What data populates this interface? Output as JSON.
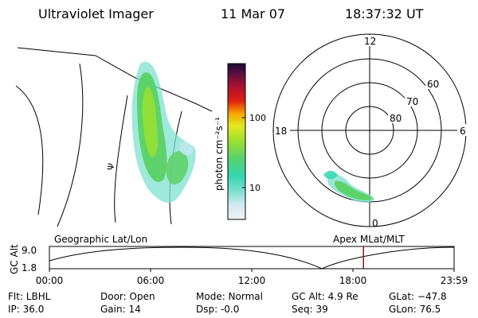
{
  "header": {
    "title": "Ultraviolet Imager",
    "date": "11 Mar 07",
    "time": "18:37:32 UT"
  },
  "colorbar": {
    "unit_label": "photon cm⁻²s⁻¹",
    "ticks": [
      "100",
      "10"
    ]
  },
  "polar": {
    "mlt_labels": [
      "12",
      "18",
      "6",
      "0"
    ],
    "lat_labels": [
      "60",
      "70",
      "80"
    ]
  },
  "left_map": {
    "marker": "Ψ"
  },
  "timeline": {
    "left_caption": "Geographic Lat/Lon",
    "right_caption": "Apex MLat/MLT",
    "y_axis_label": "GC Alt",
    "y_ticks": [
      "9.0",
      "1.8"
    ],
    "x_ticks": [
      "00:00",
      "06:00",
      "12:00",
      "18:00",
      "23:59"
    ],
    "current_time_hours": 18.625,
    "altitude_range_re": [
      1.8,
      9.0
    ]
  },
  "status": {
    "flt": "Flt: LBHL",
    "ip": "IP: 36.0",
    "door": "Door: Open",
    "gain": "Gain: 14",
    "mode": "Mode: Normal",
    "dsp": "Dsp:   -0.0",
    "gc_alt": "GC Alt: 4.9 Re",
    "seq": "Seq: 39",
    "glat": "GLat: −47.8",
    "glon": "GLon:  76.5"
  },
  "colors": {
    "timeline_marker": "#8b1a1a",
    "aurora_scale": [
      "#e8f1f8",
      "#7ee0d0",
      "#33d6b0",
      "#5ed26a",
      "#9ae030",
      "#e2e820",
      "#f7a400",
      "#e02010",
      "#8a1020",
      "#180838"
    ]
  }
}
